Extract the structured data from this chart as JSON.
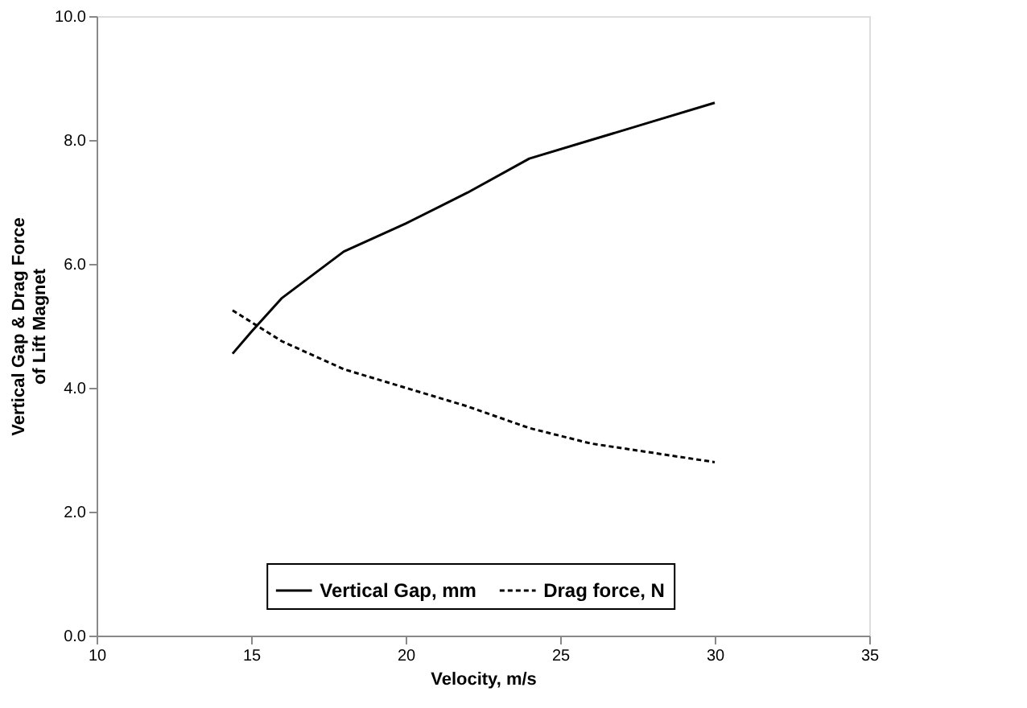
{
  "chart_data": {
    "type": "line",
    "xlabel": "Velocity,  m/s",
    "ylabel": "Vertical Gap & Drag Force\nof Lift Magnet",
    "xlim": [
      10,
      35
    ],
    "xticks": [
      10,
      15,
      20,
      25,
      30,
      35
    ],
    "ylim": [
      0,
      10
    ],
    "yticks": [
      {
        "value": 0,
        "label": "0.0"
      },
      {
        "value": 2,
        "label": "2.0"
      },
      {
        "value": 4,
        "label": "4.0"
      },
      {
        "value": 6,
        "label": "6.0"
      },
      {
        "value": 8,
        "label": "8.0"
      },
      {
        "value": 10,
        "label": "10.0"
      }
    ],
    "legend": "bottom",
    "grid": false,
    "marker": "none",
    "series": [
      {
        "name": "Vertical Gap, mm",
        "color": "#000000",
        "line_style": "solid",
        "x": [
          14.4,
          15,
          16,
          18,
          20,
          22,
          24,
          26,
          28,
          30
        ],
        "values": [
          4.55,
          4.9,
          5.45,
          6.2,
          6.65,
          7.15,
          7.7,
          8.0,
          8.3,
          8.6
        ]
      },
      {
        "name": "Drag force, N",
        "color": "#000000",
        "line_style": "dashed",
        "x": [
          14.4,
          16,
          18,
          20,
          22,
          24,
          26,
          28,
          30
        ],
        "values": [
          5.25,
          4.75,
          4.3,
          4.0,
          3.7,
          3.35,
          3.1,
          2.95,
          2.8
        ]
      }
    ]
  }
}
